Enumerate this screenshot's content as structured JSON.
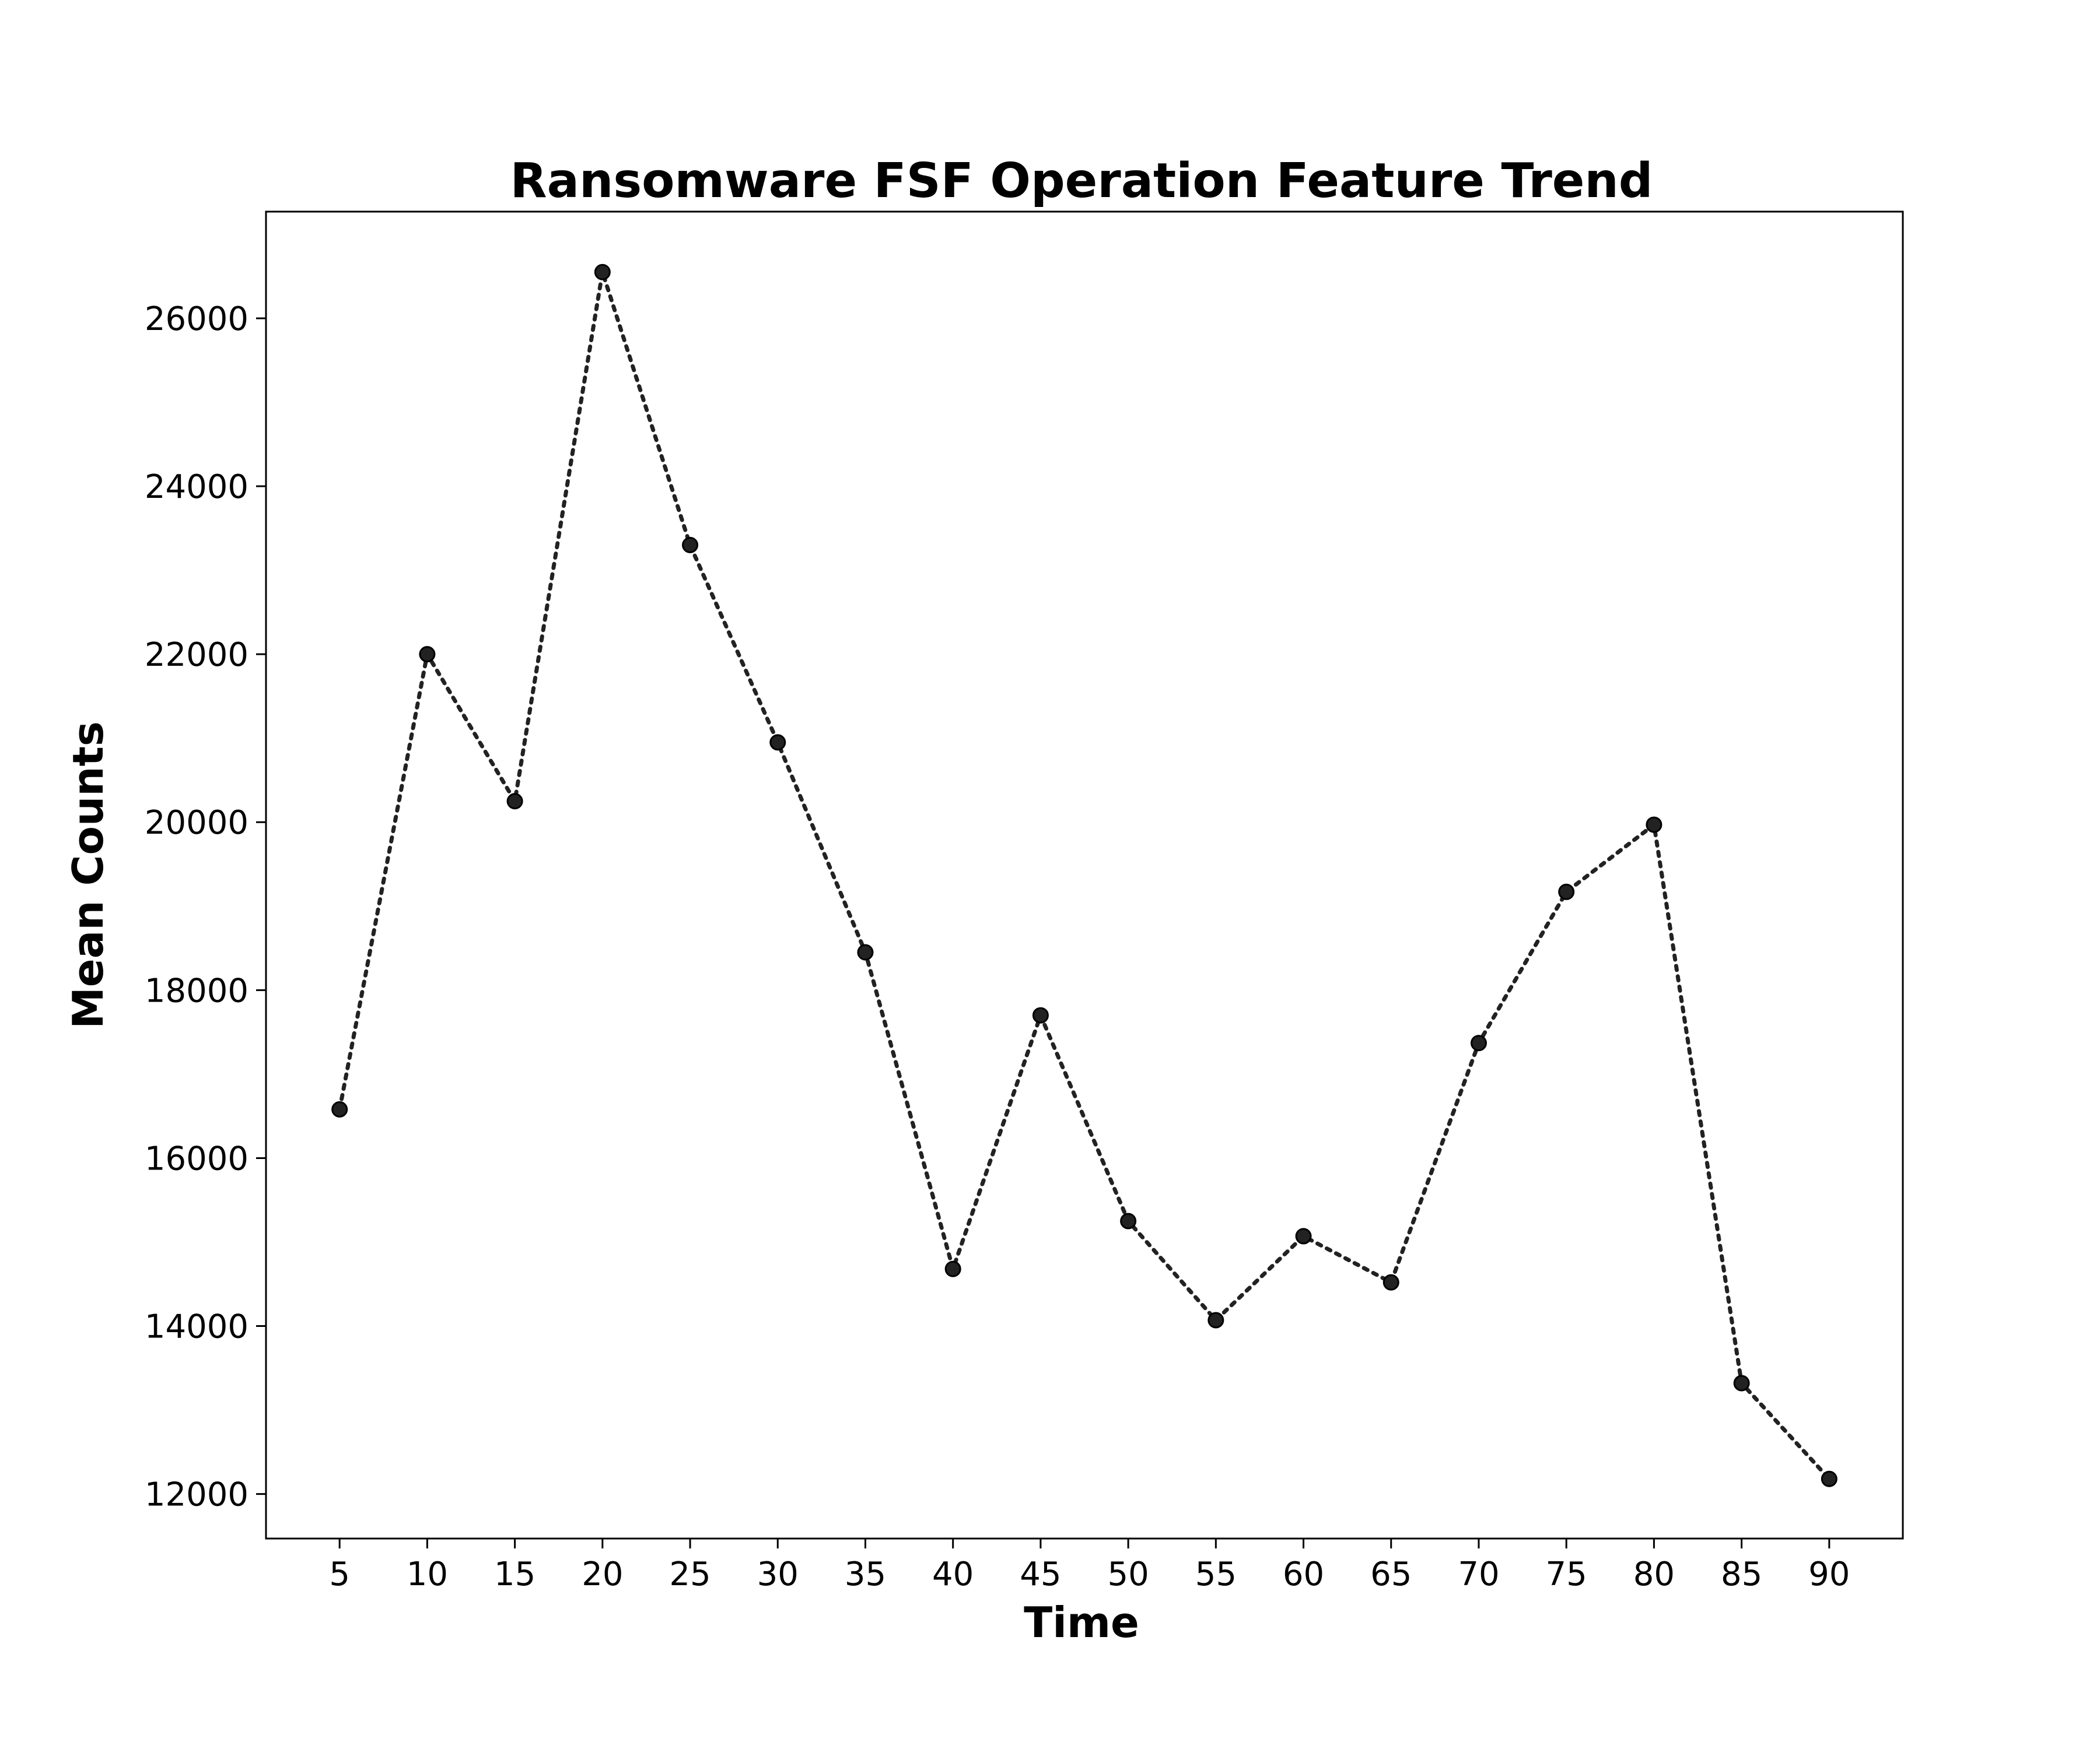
{
  "chart_data": {
    "type": "line",
    "title": "Ransomware FSF Operation Feature Trend",
    "xlabel": "Time",
    "ylabel": "Mean Counts",
    "x": [
      5,
      10,
      15,
      20,
      25,
      30,
      35,
      40,
      45,
      50,
      55,
      60,
      65,
      70,
      75,
      80,
      85,
      90
    ],
    "series": [
      {
        "values": [
          16580,
          22000,
          20250,
          26550,
          23300,
          20950,
          18450,
          14680,
          17700,
          15250,
          14070,
          15070,
          14520,
          17370,
          19170,
          19970,
          13320,
          12180
        ]
      }
    ],
    "xlim": [
      0.8,
      94.2
    ],
    "ylim": [
      11470,
      27270
    ],
    "xticks": [
      5,
      10,
      15,
      20,
      25,
      30,
      35,
      40,
      45,
      50,
      55,
      60,
      65,
      70,
      75,
      80,
      85,
      90
    ],
    "yticks": [
      12000,
      14000,
      16000,
      18000,
      20000,
      22000,
      24000,
      26000
    ],
    "grid": false,
    "line_style": "dotted",
    "marker": "circle",
    "color": "#222222"
  }
}
